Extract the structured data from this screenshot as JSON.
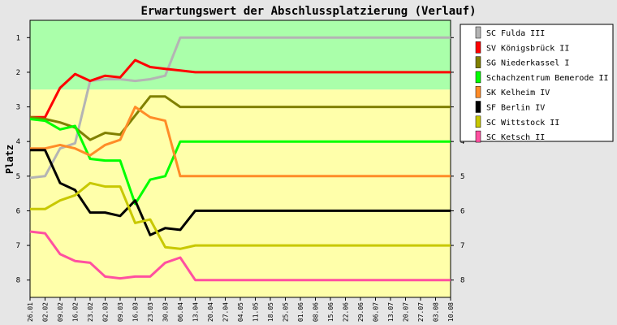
{
  "chart_data": {
    "type": "line",
    "title": "Erwartungswert der Abschlussplatzierung (Verlauf)",
    "ylabel": "Platz",
    "xlabel": "",
    "ylim": [
      0.5,
      8.5
    ],
    "y_inverted": true,
    "y_ticks": [
      "1",
      "2",
      "3",
      "4",
      "5",
      "6",
      "7",
      "8"
    ],
    "grid": false,
    "legend_position": "right",
    "bands": [
      {
        "from": 0.5,
        "to": 2.5,
        "color": "#aaffaa"
      },
      {
        "from": 2.5,
        "to": 8.5,
        "color": "#ffffaa"
      }
    ],
    "categories": [
      "26.01",
      "02.02",
      "09.02",
      "16.02",
      "23.02",
      "02.03",
      "09.03",
      "16.03",
      "23.03",
      "30.03",
      "06.04",
      "13.04",
      "20.04",
      "27.04",
      "04.05",
      "11.05",
      "18.05",
      "25.05",
      "01.06",
      "08.06",
      "15.06",
      "22.06",
      "29.06",
      "06.07",
      "13.07",
      "20.07",
      "27.07",
      "03.08",
      "10.08"
    ],
    "series": [
      {
        "name": "SC Fulda III",
        "color": "#b4b4b4",
        "values": [
          5.05,
          5.0,
          4.2,
          4.05,
          2.25,
          2.2,
          2.2,
          2.25,
          2.2,
          2.1,
          1.0,
          1.0,
          1.0,
          1.0,
          1.0,
          1.0,
          1.0,
          1.0,
          1.0,
          1.0,
          1.0,
          1.0,
          1.0,
          1.0,
          1.0,
          1.0,
          1.0,
          1.0,
          1.0
        ]
      },
      {
        "name": "SV Königsbrück II",
        "color": "#ff0000",
        "values": [
          3.3,
          3.3,
          2.45,
          2.05,
          2.25,
          2.1,
          2.15,
          1.65,
          1.85,
          1.9,
          1.95,
          2.0,
          2.0,
          2.0,
          2.0,
          2.0,
          2.0,
          2.0,
          2.0,
          2.0,
          2.0,
          2.0,
          2.0,
          2.0,
          2.0,
          2.0,
          2.0,
          2.0,
          2.0
        ]
      },
      {
        "name": "SG Niederkassel I",
        "color": "#808000",
        "values": [
          3.3,
          3.35,
          3.45,
          3.6,
          3.95,
          3.75,
          3.8,
          3.25,
          2.7,
          2.7,
          3.0,
          3.0,
          3.0,
          3.0,
          3.0,
          3.0,
          3.0,
          3.0,
          3.0,
          3.0,
          3.0,
          3.0,
          3.0,
          3.0,
          3.0,
          3.0,
          3.0,
          3.0,
          3.0
        ]
      },
      {
        "name": "Schachzentrum Bemerode II",
        "color": "#00ff00",
        "values": [
          3.35,
          3.4,
          3.65,
          3.55,
          4.5,
          4.55,
          4.55,
          5.8,
          5.1,
          5.0,
          4.0,
          4.0,
          4.0,
          4.0,
          4.0,
          4.0,
          4.0,
          4.0,
          4.0,
          4.0,
          4.0,
          4.0,
          4.0,
          4.0,
          4.0,
          4.0,
          4.0,
          4.0,
          4.0
        ]
      },
      {
        "name": "SK Kelheim IV",
        "color": "#ff8c28",
        "values": [
          4.2,
          4.2,
          4.1,
          4.2,
          4.4,
          4.1,
          3.95,
          3.0,
          3.3,
          3.4,
          5.0,
          5.0,
          5.0,
          5.0,
          5.0,
          5.0,
          5.0,
          5.0,
          5.0,
          5.0,
          5.0,
          5.0,
          5.0,
          5.0,
          5.0,
          5.0,
          5.0,
          5.0,
          5.0
        ]
      },
      {
        "name": "SF Berlin IV",
        "color": "#000000",
        "values": [
          4.25,
          4.25,
          5.2,
          5.4,
          6.05,
          6.05,
          6.15,
          5.7,
          6.7,
          6.5,
          6.55,
          6.0,
          6.0,
          6.0,
          6.0,
          6.0,
          6.0,
          6.0,
          6.0,
          6.0,
          6.0,
          6.0,
          6.0,
          6.0,
          6.0,
          6.0,
          6.0,
          6.0,
          6.0
        ]
      },
      {
        "name": "SC Wittstock II",
        "color": "#c8c800",
        "values": [
          5.95,
          5.95,
          5.7,
          5.55,
          5.2,
          5.3,
          5.3,
          6.35,
          6.25,
          7.05,
          7.1,
          7.0,
          7.0,
          7.0,
          7.0,
          7.0,
          7.0,
          7.0,
          7.0,
          7.0,
          7.0,
          7.0,
          7.0,
          7.0,
          7.0,
          7.0,
          7.0,
          7.0,
          7.0
        ]
      },
      {
        "name": "SC Ketsch II",
        "color": "#ff50a0",
        "values": [
          6.6,
          6.65,
          7.25,
          7.45,
          7.5,
          7.9,
          7.95,
          7.9,
          7.9,
          7.5,
          7.35,
          8.0,
          8.0,
          8.0,
          8.0,
          8.0,
          8.0,
          8.0,
          8.0,
          8.0,
          8.0,
          8.0,
          8.0,
          8.0,
          8.0,
          8.0,
          8.0,
          8.0,
          8.0
        ]
      }
    ]
  }
}
